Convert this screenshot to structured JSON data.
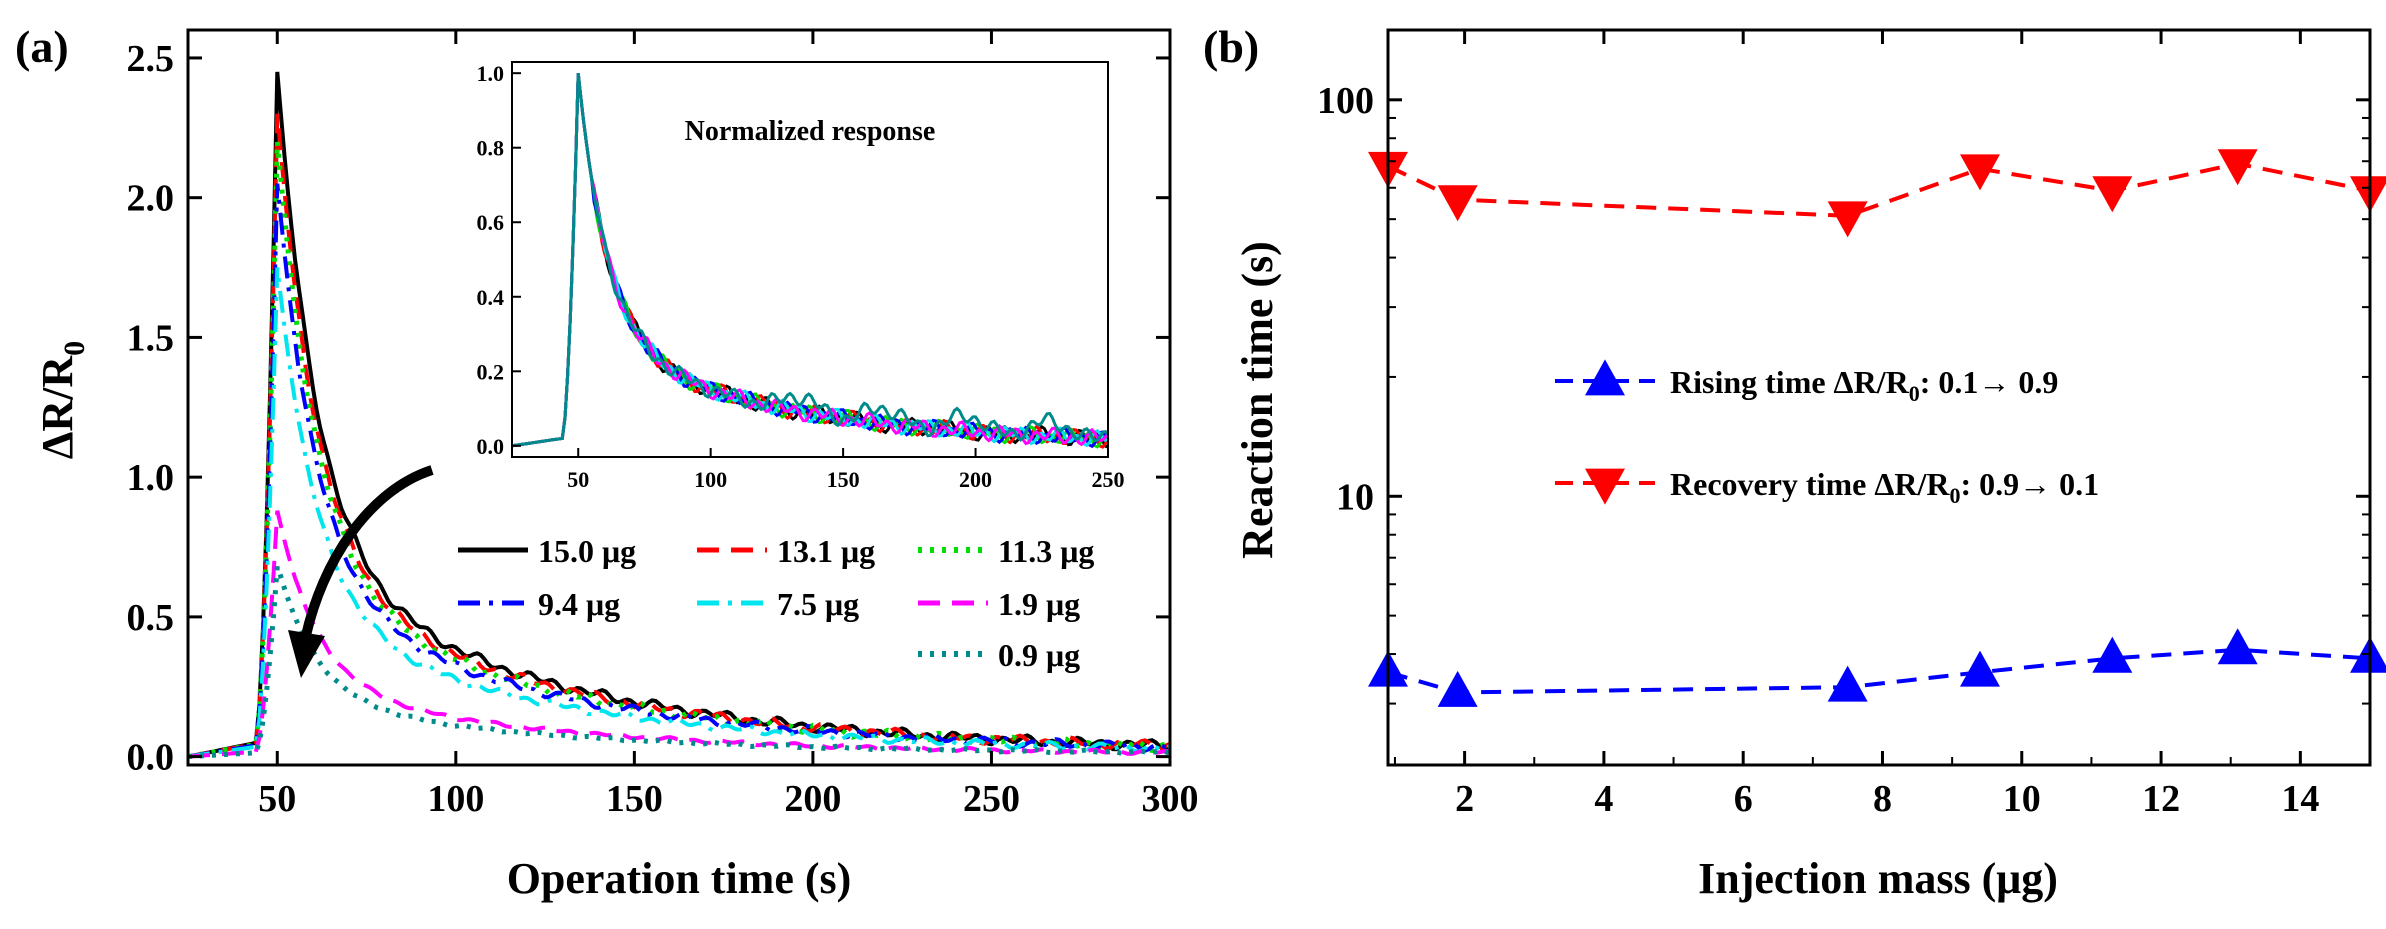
{
  "chart_data": [
    {
      "type": "line",
      "panel_label": "(a)",
      "title": "",
      "xlabel": "Operation time (s)",
      "ylabel_main": "ΔR/R",
      "ylabel_sub": "0",
      "xlim": [
        25,
        300
      ],
      "ylim": [
        -0.03,
        2.6
      ],
      "x_ticks": [
        50,
        100,
        150,
        200,
        250,
        300
      ],
      "y_ticks": [
        0.0,
        0.5,
        1.0,
        1.5,
        2.0,
        2.5
      ],
      "x_tick_labels": [
        "50",
        "100",
        "150",
        "200",
        "250",
        "300"
      ],
      "y_tick_labels": [
        "0.0",
        "0.5",
        "1.0",
        "1.5",
        "2.0",
        "2.5"
      ],
      "series": [
        {
          "name": "15.0 μg",
          "label": "15.0 μg",
          "color": "#000000",
          "dash": "solid",
          "peak": 2.45,
          "tail": 0.05
        },
        {
          "name": "13.1 μg",
          "label": "13.1 μg",
          "color": "#ff0000",
          "dash": "dash",
          "peak": 2.3,
          "tail": 0.06
        },
        {
          "name": "11.3 μg",
          "label": "11.3 μg",
          "color": "#00dd00",
          "dash": "dot",
          "peak": 2.2,
          "tail": 0.05
        },
        {
          "name": "9.4 μg",
          "label": "9.4 μg",
          "color": "#0000ff",
          "dash": "dashdot",
          "peak": 2.05,
          "tail": 0.05
        },
        {
          "name": "7.5 μg",
          "label": "7.5 μg",
          "color": "#00e5ee",
          "dash": "dashdot",
          "peak": 1.75,
          "tail": 0.04
        },
        {
          "name": "1.9 μg",
          "label": "1.9 μg",
          "color": "#ff00ff",
          "dash": "dash",
          "peak": 0.88,
          "tail": 0.02
        },
        {
          "name": "0.9 μg",
          "label": "0.9 μg",
          "color": "#008b8b",
          "dash": "dot",
          "peak": 0.68,
          "tail": 0.03
        }
      ],
      "inset": {
        "title": "Normalized response",
        "xlim": [
          25,
          250
        ],
        "ylim": [
          -0.03,
          1.03
        ],
        "x_ticks": [
          50,
          100,
          150,
          200,
          250
        ],
        "y_ticks": [
          0.0,
          0.2,
          0.4,
          0.6,
          0.8,
          1.0
        ],
        "x_tick_labels": [
          "50",
          "100",
          "150",
          "200",
          "250"
        ],
        "y_tick_labels": [
          "0.0",
          "0.2",
          "0.4",
          "0.6",
          "0.8",
          "1.0"
        ]
      }
    },
    {
      "type": "line",
      "panel_label": "(b)",
      "title": "",
      "xlabel": "Injection mass (μg)",
      "ylabel": "Reaction time (s)",
      "yscale": "log",
      "xlim": [
        0.9,
        15.0
      ],
      "ylim": [
        2.1,
        150
      ],
      "x_ticks": [
        2,
        4,
        6,
        8,
        10,
        12,
        14
      ],
      "x_tick_labels": [
        "2",
        "4",
        "6",
        "8",
        "10",
        "12",
        "14"
      ],
      "y_ticks": [
        10,
        100
      ],
      "y_tick_labels": [
        "10",
        "100"
      ],
      "x": [
        0.9,
        1.9,
        7.5,
        9.4,
        11.3,
        13.1,
        15.0
      ],
      "series": [
        {
          "name": "Rising time",
          "legend_text": "Rising time ΔR/R",
          "legend_sub": "0",
          "legend_tail": ": 0.1→ 0.9",
          "color": "#0000ff",
          "marker": "triangle-up",
          "values": [
            3.6,
            3.2,
            3.3,
            3.6,
            3.9,
            4.1,
            3.9
          ]
        },
        {
          "name": "Recovery time",
          "legend_text": "Recovery time ΔR/R",
          "legend_sub": "0",
          "legend_tail": ": 0.9→ 0.1",
          "color": "#ff0000",
          "marker": "triangle-down",
          "values": [
            68,
            56,
            51,
            67,
            59,
            69,
            59
          ]
        }
      ]
    }
  ]
}
